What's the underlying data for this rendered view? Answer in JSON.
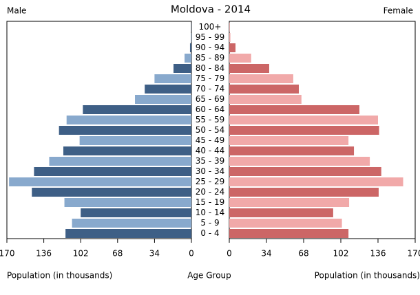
{
  "chart_data": {
    "type": "pyramid",
    "title": "Moldova - 2014",
    "categories": [
      "100+",
      "95 - 99",
      "90 - 94",
      "85 - 89",
      "80 - 84",
      "75 - 79",
      "70 - 74",
      "65 - 69",
      "60 - 64",
      "55 - 59",
      "50 - 54",
      "45 - 49",
      "40 - 44",
      "35 - 39",
      "30 - 34",
      "25 - 29",
      "20 - 24",
      "15 - 19",
      "10 - 14",
      "5 - 9",
      "0 - 4"
    ],
    "category_label": "Age Group",
    "series": [
      {
        "name": "Male",
        "colors": [
          "#3e5f86",
          "#88a9cd"
        ],
        "values": [
          0.2,
          0.5,
          1.3,
          6.3,
          16.5,
          34,
          43,
          52,
          100,
          115,
          122,
          103,
          118,
          131,
          145,
          168,
          147,
          117,
          102,
          110,
          116
        ]
      },
      {
        "name": "Female",
        "colors": [
          "#cc6666",
          "#f1a9a9"
        ],
        "values": [
          0.3,
          1,
          5.7,
          20,
          36.5,
          58.5,
          63.6,
          66,
          119,
          136,
          137,
          109,
          114,
          128.5,
          139,
          159,
          136.6,
          109.6,
          95,
          103,
          109
        ]
      }
    ],
    "x_label_left": "Population (in thousands)",
    "x_label_right": "Population (in thousands)",
    "xlim": [
      0,
      170
    ],
    "xticks": [
      0,
      34,
      68,
      102,
      136,
      170
    ]
  }
}
